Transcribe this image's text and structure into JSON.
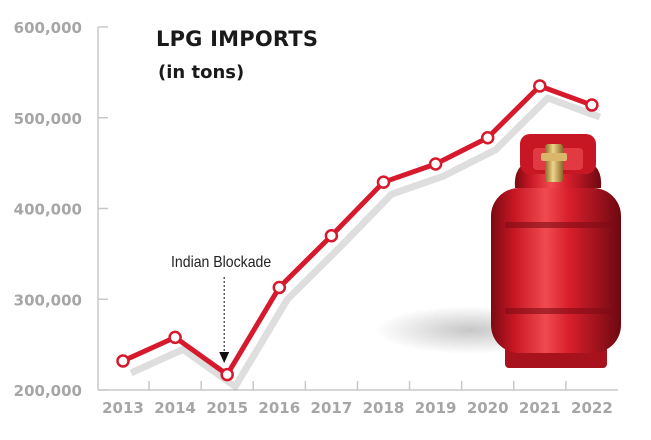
{
  "chart_data": {
    "type": "line",
    "title": "LPG IMPORTS",
    "subtitle": "(in tons)",
    "xlabel": "",
    "ylabel": "",
    "categories": [
      "2013",
      "2014",
      "2015",
      "2016",
      "2017",
      "2018",
      "2019",
      "2020",
      "2021",
      "2022"
    ],
    "series": [
      {
        "values": [
          232000,
          258000,
          217000,
          313000,
          370000,
          429000,
          449000,
          478000,
          535000,
          514000
        ]
      }
    ],
    "ylim": [
      200000,
      600000
    ],
    "yticks": [
      200000,
      300000,
      400000,
      500000,
      600000
    ],
    "ytick_labels": [
      "200,000",
      "300,000",
      "400,000",
      "500,000",
      "600,000"
    ],
    "grid": false,
    "annotations": [
      {
        "text": "Indian Blockade",
        "x": "2015"
      }
    ],
    "colors": {
      "line": "#d6192c",
      "marker_fill": "#ffffff",
      "axis": "#c8c8c8",
      "tick_label": "#a6a6a6",
      "cylinder": "#cf1f2b"
    },
    "illustration": "lpg-gas-cylinder"
  }
}
